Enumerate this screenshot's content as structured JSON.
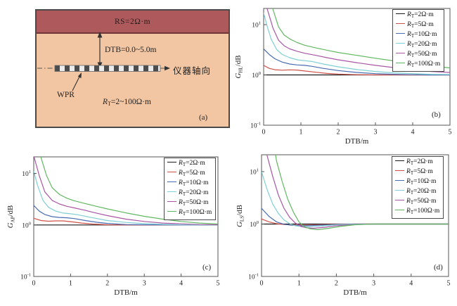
{
  "panel_a": {
    "rs_label": "RS=2Ω·m",
    "dtb_label": "DTB=0.0~5.0m",
    "tool_axis_label": "仪器轴向",
    "wpr_label": "WPR",
    "rt_symbol": "R",
    "rt_subscript": "T",
    "rt_value": "=2~100Ω·m",
    "label": "(a)"
  },
  "legend": {
    "symbol": "R",
    "subscript": "T",
    "entries": [
      {
        "value": "=2Ω·m",
        "color": "#1a1a1a"
      },
      {
        "value": "=5Ω·m",
        "color": "#cf5148"
      },
      {
        "value": "=10Ω·m",
        "color": "#4a6cb3"
      },
      {
        "value": "=20Ω·m",
        "color": "#7fcfd4"
      },
      {
        "value": "=50Ω·m",
        "color": "#a857a5"
      },
      {
        "value": "=100Ω·m",
        "color": "#62b862"
      }
    ]
  },
  "chart_data": [
    {
      "id": "b",
      "type": "line",
      "panel_letter": "(b)",
      "xlabel": "DTB/m",
      "ylabel": {
        "symbol": "G",
        "sub": "HL",
        "suffix": "/dB"
      },
      "xlim": [
        0,
        5
      ],
      "ylim": [
        0.1,
        21
      ],
      "xticks": [
        0,
        1,
        2,
        3,
        4,
        5
      ],
      "ytick_exponents": [
        1,
        0,
        -1
      ],
      "grid": false,
      "legend_position": "upper right",
      "series": [
        {
          "rt": "2",
          "color": "#1a1a1a",
          "points": [
            [
              0,
              1
            ],
            [
              5,
              1
            ]
          ]
        },
        {
          "rt": "5",
          "color": "#cf5148",
          "points": [
            [
              0,
              1.55
            ],
            [
              0.15,
              1.35
            ],
            [
              0.3,
              1.27
            ],
            [
              0.5,
              1.24
            ],
            [
              0.7,
              1.26
            ],
            [
              0.9,
              1.25
            ],
            [
              1.1,
              1.2
            ],
            [
              1.4,
              1.13
            ],
            [
              1.7,
              1.07
            ],
            [
              2,
              1.04
            ],
            [
              2.5,
              1.01
            ],
            [
              3,
              1
            ],
            [
              4,
              1
            ],
            [
              5,
              1
            ]
          ]
        },
        {
          "rt": "10",
          "color": "#4a6cb3",
          "points": [
            [
              0,
              3.3
            ],
            [
              0.15,
              2.55
            ],
            [
              0.3,
              2.1
            ],
            [
              0.5,
              1.8
            ],
            [
              0.7,
              1.65
            ],
            [
              0.9,
              1.58
            ],
            [
              1.1,
              1.55
            ],
            [
              1.3,
              1.48
            ],
            [
              1.6,
              1.35
            ],
            [
              2,
              1.22
            ],
            [
              2.5,
              1.12
            ],
            [
              3,
              1.06
            ],
            [
              3.5,
              1.03
            ],
            [
              4,
              1.01
            ],
            [
              4.5,
              1
            ],
            [
              5,
              1
            ]
          ]
        },
        {
          "rt": "20",
          "color": "#7fcfd4",
          "points": [
            [
              0,
              17
            ],
            [
              0.1,
              9
            ],
            [
              0.2,
              5.2
            ],
            [
              0.35,
              3.2
            ],
            [
              0.5,
              2.55
            ],
            [
              0.7,
              2.2
            ],
            [
              0.9,
              2
            ],
            [
              1.1,
              1.92
            ],
            [
              1.3,
              1.85
            ],
            [
              1.6,
              1.65
            ],
            [
              2,
              1.45
            ],
            [
              2.5,
              1.28
            ],
            [
              3,
              1.17
            ],
            [
              3.5,
              1.1
            ],
            [
              4,
              1.06
            ],
            [
              4.5,
              1.03
            ],
            [
              5,
              1.02
            ]
          ]
        },
        {
          "rt": "50",
          "color": "#a857a5",
          "points": [
            [
              0,
              45
            ],
            [
              0.1,
              20
            ],
            [
              0.25,
              8.5
            ],
            [
              0.4,
              4.9
            ],
            [
              0.55,
              3.8
            ],
            [
              0.7,
              3.3
            ],
            [
              0.9,
              2.95
            ],
            [
              1.1,
              2.7
            ],
            [
              1.4,
              2.45
            ],
            [
              1.7,
              2.2
            ],
            [
              2,
              2
            ],
            [
              2.5,
              1.75
            ],
            [
              3,
              1.55
            ],
            [
              3.5,
              1.4
            ],
            [
              4,
              1.27
            ],
            [
              4.5,
              1.17
            ],
            [
              5,
              1.12
            ]
          ]
        },
        {
          "rt": "100",
          "color": "#62b862",
          "points": [
            [
              0.15,
              45
            ],
            [
              0.25,
              20
            ],
            [
              0.4,
              9
            ],
            [
              0.55,
              6.2
            ],
            [
              0.7,
              5.2
            ],
            [
              0.9,
              4.4
            ],
            [
              1.1,
              3.9
            ],
            [
              1.4,
              3.45
            ],
            [
              1.7,
              3.1
            ],
            [
              2,
              2.8
            ],
            [
              2.5,
              2.45
            ],
            [
              3,
              2.15
            ],
            [
              3.5,
              1.9
            ],
            [
              4,
              1.68
            ],
            [
              4.5,
              1.5
            ],
            [
              5,
              1.38
            ]
          ]
        }
      ]
    },
    {
      "id": "c",
      "type": "line",
      "panel_letter": "(c)",
      "xlabel": "DTB/m",
      "ylabel": {
        "symbol": "G",
        "sub": "AP",
        "suffix": "/dB"
      },
      "xlim": [
        0,
        5
      ],
      "ylim": [
        0.1,
        21
      ],
      "xticks": [
        0,
        1,
        2,
        3,
        4,
        5
      ],
      "ytick_exponents": [
        1,
        0,
        -1
      ],
      "grid": false,
      "legend_position": "upper right",
      "series": [
        {
          "rt": "2",
          "color": "#1a1a1a",
          "points": [
            [
              0,
              1
            ],
            [
              5,
              1
            ]
          ]
        },
        {
          "rt": "5",
          "color": "#cf5148",
          "points": [
            [
              0,
              1.35
            ],
            [
              0.2,
              1.22
            ],
            [
              0.4,
              1.18
            ],
            [
              0.6,
              1.2
            ],
            [
              0.8,
              1.2
            ],
            [
              1,
              1.16
            ],
            [
              1.3,
              1.09
            ],
            [
              1.6,
              1.04
            ],
            [
              2,
              1.01
            ],
            [
              2.5,
              1
            ],
            [
              5,
              1
            ]
          ]
        },
        {
          "rt": "10",
          "color": "#4a6cb3",
          "points": [
            [
              0,
              2.4
            ],
            [
              0.15,
              1.85
            ],
            [
              0.3,
              1.6
            ],
            [
              0.5,
              1.45
            ],
            [
              0.7,
              1.4
            ],
            [
              0.9,
              1.38
            ],
            [
              1.1,
              1.33
            ],
            [
              1.4,
              1.22
            ],
            [
              1.7,
              1.13
            ],
            [
              2,
              1.07
            ],
            [
              2.5,
              1.02
            ],
            [
              3,
              1.01
            ],
            [
              4,
              1
            ],
            [
              5,
              1
            ]
          ]
        },
        {
          "rt": "20",
          "color": "#7fcfd4",
          "points": [
            [
              0,
              11
            ],
            [
              0.1,
              6
            ],
            [
              0.25,
              3
            ],
            [
              0.4,
              2.2
            ],
            [
              0.6,
              1.85
            ],
            [
              0.8,
              1.7
            ],
            [
              1,
              1.65
            ],
            [
              1.2,
              1.58
            ],
            [
              1.5,
              1.42
            ],
            [
              2,
              1.22
            ],
            [
              2.5,
              1.12
            ],
            [
              3,
              1.06
            ],
            [
              3.5,
              1.03
            ],
            [
              4,
              1.01
            ],
            [
              5,
              1
            ]
          ]
        },
        {
          "rt": "50",
          "color": "#a857a5",
          "points": [
            [
              0,
              22
            ],
            [
              0.15,
              9
            ],
            [
              0.3,
              4.4
            ],
            [
              0.5,
              3
            ],
            [
              0.7,
              2.55
            ],
            [
              0.9,
              2.3
            ],
            [
              1.1,
              2.15
            ],
            [
              1.4,
              1.92
            ],
            [
              1.7,
              1.7
            ],
            [
              2,
              1.52
            ],
            [
              2.5,
              1.3
            ],
            [
              3,
              1.17
            ],
            [
              3.5,
              1.09
            ],
            [
              4,
              1.05
            ],
            [
              4.5,
              1.02
            ],
            [
              5,
              1.01
            ]
          ]
        },
        {
          "rt": "100",
          "color": "#62b862",
          "points": [
            [
              0.1,
              45
            ],
            [
              0.2,
              20
            ],
            [
              0.35,
              9
            ],
            [
              0.5,
              5.3
            ],
            [
              0.7,
              3.9
            ],
            [
              0.9,
              3.3
            ],
            [
              1.1,
              2.95
            ],
            [
              1.4,
              2.6
            ],
            [
              1.7,
              2.3
            ],
            [
              2,
              2.05
            ],
            [
              2.5,
              1.72
            ],
            [
              3,
              1.47
            ],
            [
              3.5,
              1.3
            ],
            [
              4,
              1.17
            ],
            [
              4.5,
              1.09
            ],
            [
              5,
              1.04
            ]
          ]
        }
      ]
    },
    {
      "id": "d",
      "type": "line",
      "panel_letter": "(d)",
      "xlabel": "DTB/m",
      "ylabel": {
        "symbol": "G",
        "sub": "LS",
        "suffix": "/dB"
      },
      "xlim": [
        0,
        5
      ],
      "ylim": [
        0.1,
        21
      ],
      "xticks": [
        0,
        1,
        2,
        3,
        4,
        5
      ],
      "ytick_exponents": [
        1,
        0,
        -1
      ],
      "grid": false,
      "legend_position": "upper right",
      "series": [
        {
          "rt": "2",
          "color": "#1a1a1a",
          "points": [
            [
              0,
              1
            ],
            [
              5,
              1
            ]
          ]
        },
        {
          "rt": "5",
          "color": "#cf5148",
          "points": [
            [
              0,
              1.25
            ],
            [
              0.2,
              1.1
            ],
            [
              0.4,
              1.02
            ],
            [
              0.6,
              0.98
            ],
            [
              0.8,
              0.965
            ],
            [
              1,
              0.955
            ],
            [
              1.2,
              0.955
            ],
            [
              1.5,
              0.97
            ],
            [
              2,
              0.99
            ],
            [
              2.5,
              1
            ],
            [
              5,
              1
            ]
          ]
        },
        {
          "rt": "10",
          "color": "#4a6cb3",
          "points": [
            [
              0,
              2
            ],
            [
              0.2,
              1.4
            ],
            [
              0.4,
              1.1
            ],
            [
              0.6,
              0.99
            ],
            [
              0.8,
              0.95
            ],
            [
              1,
              0.93
            ],
            [
              1.2,
              0.93
            ],
            [
              1.5,
              0.95
            ],
            [
              2,
              0.98
            ],
            [
              2.5,
              1
            ],
            [
              5,
              1
            ]
          ]
        },
        {
          "rt": "20",
          "color": "#7fcfd4",
          "points": [
            [
              0,
              10
            ],
            [
              0.15,
              4.5
            ],
            [
              0.3,
              2.4
            ],
            [
              0.45,
              1.6
            ],
            [
              0.6,
              1.2
            ],
            [
              0.75,
              1.02
            ],
            [
              0.9,
              0.93
            ],
            [
              1.1,
              0.89
            ],
            [
              1.3,
              0.89
            ],
            [
              1.6,
              0.92
            ],
            [
              2,
              0.97
            ],
            [
              2.5,
              0.995
            ],
            [
              3,
              1
            ],
            [
              5,
              1
            ]
          ]
        },
        {
          "rt": "50",
          "color": "#a857a5",
          "points": [
            [
              0.05,
              45
            ],
            [
              0.15,
              20
            ],
            [
              0.3,
              8
            ],
            [
              0.45,
              3.6
            ],
            [
              0.6,
              2
            ],
            [
              0.75,
              1.35
            ],
            [
              0.9,
              1.05
            ],
            [
              1.05,
              0.9
            ],
            [
              1.2,
              0.85
            ],
            [
              1.4,
              0.83
            ],
            [
              1.7,
              0.87
            ],
            [
              2,
              0.93
            ],
            [
              2.5,
              0.98
            ],
            [
              3,
              1
            ],
            [
              5,
              1
            ]
          ]
        },
        {
          "rt": "100",
          "color": "#62b862",
          "points": [
            [
              0.3,
              45
            ],
            [
              0.4,
              16
            ],
            [
              0.55,
              6.5
            ],
            [
              0.7,
              3
            ],
            [
              0.85,
              1.7
            ],
            [
              1,
              1.1
            ],
            [
              1.15,
              0.88
            ],
            [
              1.3,
              0.81
            ],
            [
              1.5,
              0.78
            ],
            [
              1.8,
              0.83
            ],
            [
              2.1,
              0.9
            ],
            [
              2.5,
              0.97
            ],
            [
              3,
              1
            ],
            [
              5,
              1
            ]
          ]
        }
      ]
    }
  ]
}
